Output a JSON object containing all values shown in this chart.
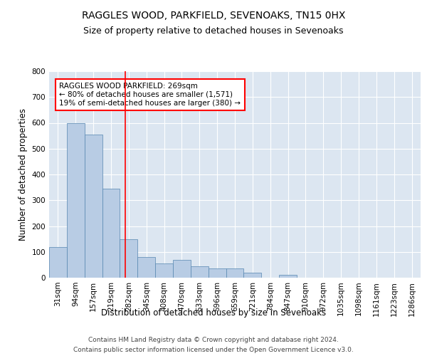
{
  "title": "RAGGLES WOOD, PARKFIELD, SEVENOAKS, TN15 0HX",
  "subtitle": "Size of property relative to detached houses in Sevenoaks",
  "xlabel": "Distribution of detached houses by size in Sevenoaks",
  "ylabel": "Number of detached properties",
  "categories": [
    "31sqm",
    "94sqm",
    "157sqm",
    "219sqm",
    "282sqm",
    "345sqm",
    "408sqm",
    "470sqm",
    "533sqm",
    "596sqm",
    "659sqm",
    "721sqm",
    "784sqm",
    "847sqm",
    "910sqm",
    "972sqm",
    "1035sqm",
    "1098sqm",
    "1161sqm",
    "1223sqm",
    "1286sqm"
  ],
  "values": [
    120,
    600,
    555,
    345,
    150,
    80,
    55,
    70,
    45,
    35,
    35,
    20,
    0,
    10,
    0,
    0,
    0,
    0,
    0,
    0,
    0
  ],
  "bar_color": "#b8cce4",
  "bar_edge_color": "#5586b0",
  "annotation_text": "RAGGLES WOOD PARKFIELD: 269sqm\n← 80% of detached houses are smaller (1,571)\n19% of semi-detached houses are larger (380) →",
  "ylim": [
    0,
    800
  ],
  "yticks": [
    0,
    100,
    200,
    300,
    400,
    500,
    600,
    700,
    800
  ],
  "footer1": "Contains HM Land Registry data © Crown copyright and database right 2024.",
  "footer2": "Contains public sector information licensed under the Open Government Licence v3.0.",
  "plot_bg_color": "#dce6f1",
  "grid_color": "#ffffff",
  "title_fontsize": 10,
  "subtitle_fontsize": 9,
  "axis_label_fontsize": 8.5,
  "tick_fontsize": 7.5,
  "annotation_fontsize": 7.5,
  "footer_fontsize": 6.5
}
